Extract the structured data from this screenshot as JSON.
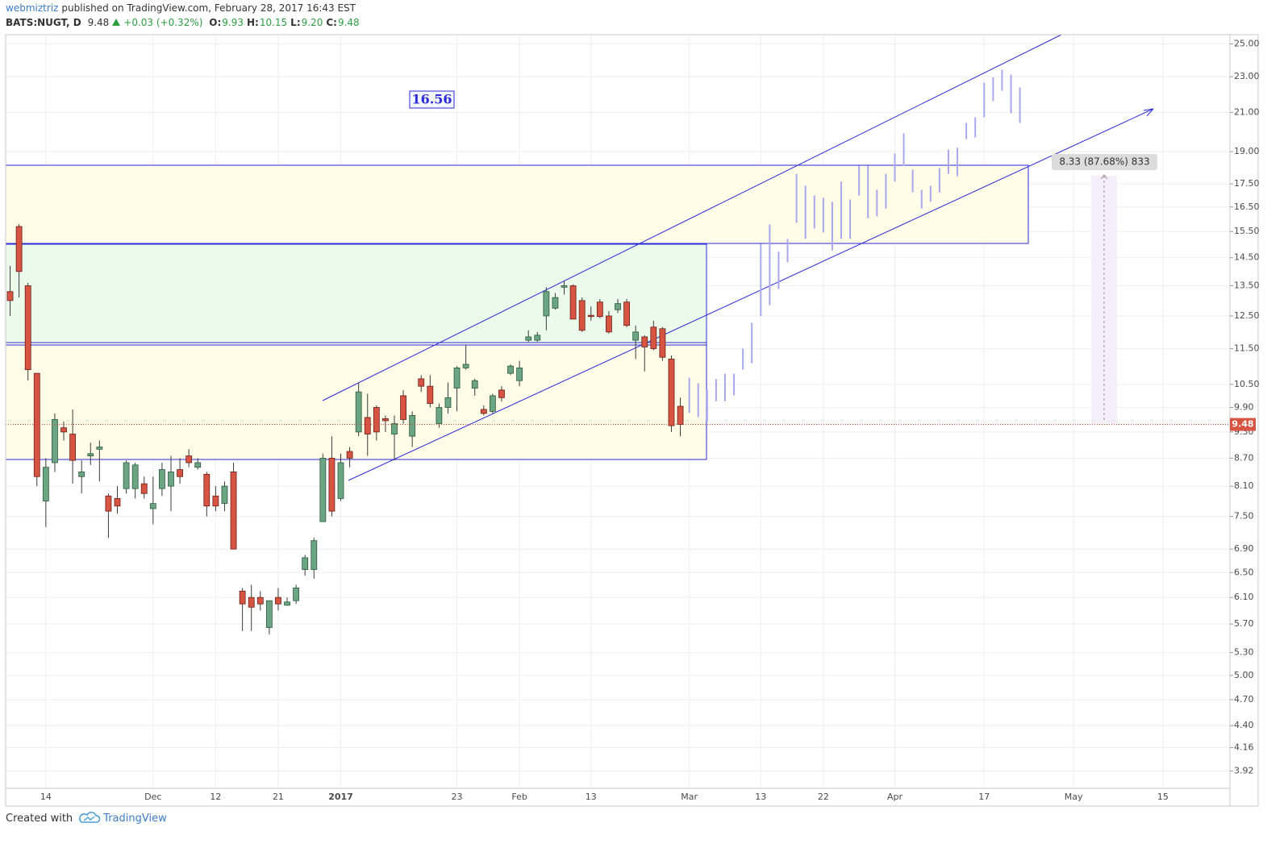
{
  "header": {
    "author": "webmiztriz",
    "published": "published on TradingView.com, February 28, 2017 16:43 EST",
    "symbol": "BATS:NUGT, D",
    "last": "9.48",
    "change": "+0.03 (+0.32%)",
    "ohlc": [
      {
        "label": "O:",
        "value": "9.93"
      },
      {
        "label": "H:",
        "value": "10.15"
      },
      {
        "label": "L:",
        "value": "9.20"
      },
      {
        "label": "C:",
        "value": "9.48"
      }
    ]
  },
  "footer": {
    "prefix": "Created with",
    "brand": "TradingView"
  },
  "chart_data": {
    "type": "candlestick",
    "log_scale": true,
    "grid": true,
    "up_color": "#6ba583",
    "down_color": "#d75442",
    "ylim": [
      3.75,
      25.6
    ],
    "yticks": [
      {
        "value": 25,
        "label": "25.00"
      },
      {
        "value": 23,
        "label": "23.00"
      },
      {
        "value": 21,
        "label": "21.00"
      },
      {
        "value": 19,
        "label": "19.00"
      },
      {
        "value": 17.5,
        "label": "17.50"
      },
      {
        "value": 16.5,
        "label": "16.50"
      },
      {
        "value": 15.5,
        "label": "15.50"
      },
      {
        "value": 14.5,
        "label": "14.50"
      },
      {
        "value": 13.5,
        "label": "13.50"
      },
      {
        "value": 12.5,
        "label": "12.50"
      },
      {
        "value": 11.5,
        "label": "11.50"
      },
      {
        "value": 10.5,
        "label": "10.50"
      },
      {
        "value": 9.9,
        "label": "9.90"
      },
      {
        "value": 9.3,
        "label": "9.30"
      },
      {
        "value": 8.7,
        "label": "8.70"
      },
      {
        "value": 8.1,
        "label": "8.10"
      },
      {
        "value": 7.5,
        "label": "7.50"
      },
      {
        "value": 6.9,
        "label": "6.90"
      },
      {
        "value": 6.5,
        "label": "6.50"
      },
      {
        "value": 6.1,
        "label": "6.10"
      },
      {
        "value": 5.7,
        "label": "5.70"
      },
      {
        "value": 5.3,
        "label": "5.30"
      },
      {
        "value": 5,
        "label": "5.00"
      },
      {
        "value": 4.7,
        "label": "4.70"
      },
      {
        "value": 4.4,
        "label": "4.40"
      },
      4.16,
      3.92
    ],
    "last_price": 9.48,
    "annotations": {
      "price_note": "16.56",
      "measure": "8.33 (87.68%) 833"
    },
    "categories": [
      null,
      null,
      null,
      null,
      "14",
      null,
      null,
      null,
      null,
      null,
      null,
      null,
      null,
      null,
      null,
      null,
      "Dec",
      null,
      null,
      null,
      null,
      null,
      null,
      "12",
      null,
      null,
      null,
      null,
      null,
      null,
      "21",
      null,
      null,
      null,
      null,
      null,
      null,
      "2017",
      null,
      null,
      null,
      null,
      null,
      null,
      null,
      null,
      null,
      null,
      null,
      null,
      "23",
      null,
      null,
      null,
      null,
      null,
      null,
      "Feb",
      null,
      null,
      null,
      null,
      null,
      null,
      null,
      "13",
      null,
      null,
      null,
      null,
      null,
      null,
      null,
      null,
      null,
      null,
      "Mar",
      null,
      null,
      null,
      null,
      null,
      null,
      null,
      "13",
      null,
      null,
      null,
      null,
      null,
      null,
      "22",
      null,
      null,
      null,
      null,
      null,
      null,
      null,
      "Apr",
      null,
      null,
      null,
      null,
      null,
      null,
      null,
      null,
      null,
      "17",
      null,
      null,
      null,
      null,
      null,
      null,
      null,
      null,
      null,
      "May",
      null,
      null,
      null,
      null,
      null,
      null,
      null,
      null,
      null,
      "15",
      null,
      null,
      null,
      null,
      null,
      null,
      null
    ],
    "open": [
      13.3,
      15.7,
      13.5,
      10.8,
      7.8,
      8.6,
      9.4,
      9.25,
      8.3,
      8.75,
      8.9,
      7.9,
      7.85,
      8.05,
      8.05,
      8.15,
      7.65,
      8.05,
      8.1,
      8.45,
      8.75,
      8.5,
      8.35,
      7.9,
      7.75,
      8.4,
      6.2,
      6.1,
      6.1,
      5.65,
      6.1,
      5.98,
      6.05,
      6.55,
      6.55,
      7.4,
      8.7,
      7.85,
      8.85,
      9.3,
      9.65,
      9.9,
      9.62,
      9.25,
      10.2,
      9.2,
      10.65,
      10.45,
      9.5,
      9.9,
      10.4,
      10.95,
      10.4,
      9.85,
      9.8,
      10.35,
      10.8,
      10.6,
      11.75,
      11.75,
      12.5,
      12.75,
      13.45,
      13.5,
      13.0,
      12.52,
      12.95,
      12.5,
      12.7,
      12.95,
      11.75,
      11.85,
      12.15,
      12.1,
      11.2,
      9.93,
      null,
      null,
      null,
      null,
      null,
      null,
      null,
      null,
      null,
      null,
      null,
      null,
      null,
      null,
      null,
      null,
      null,
      null,
      null,
      null,
      null,
      null,
      null,
      null,
      null,
      null,
      null,
      null,
      null,
      null,
      null,
      null,
      null,
      null,
      null,
      null,
      null,
      null,
      null,
      null,
      null,
      null,
      null,
      null,
      null,
      null,
      null,
      null,
      null,
      null,
      null,
      null,
      null,
      null,
      null,
      null,
      null,
      null,
      null,
      null,
      null
    ],
    "high": [
      14.2,
      15.8,
      13.6,
      10.8,
      8.7,
      9.75,
      9.55,
      9.85,
      8.65,
      9.05,
      9.1,
      7.95,
      8.1,
      8.65,
      8.6,
      8.3,
      8.3,
      8.6,
      8.75,
      8.7,
      8.9,
      8.7,
      8.4,
      8.1,
      8.2,
      8.6,
      6.25,
      6.3,
      6.2,
      6.05,
      6.25,
      6.1,
      6.3,
      6.8,
      7.1,
      8.8,
      9.2,
      8.8,
      8.95,
      10.55,
      10.25,
      9.95,
      9.7,
      9.7,
      10.35,
      9.8,
      10.75,
      10.75,
      10.0,
      10.55,
      11.0,
      11.6,
      10.65,
      9.95,
      10.25,
      10.45,
      11.05,
      11.15,
      12.05,
      12.0,
      13.45,
      13.25,
      13.65,
      13.55,
      13.1,
      12.8,
      13.05,
      12.65,
      13.05,
      13.05,
      12.2,
      11.9,
      12.35,
      12.15,
      11.3,
      10.15,
      null,
      null,
      null,
      null,
      null,
      null,
      null,
      null,
      null,
      null,
      null,
      null,
      null,
      null,
      null,
      null,
      null,
      null,
      null,
      null,
      null,
      null,
      null,
      null,
      null,
      null,
      null,
      null,
      null,
      null,
      null,
      null,
      null,
      null,
      null,
      null,
      null,
      null,
      null,
      null,
      null,
      null,
      null,
      null,
      null,
      null,
      null,
      null,
      null,
      null,
      null,
      null,
      null,
      null,
      null,
      null,
      null,
      null,
      null,
      null,
      null
    ],
    "low": [
      12.5,
      13.1,
      10.6,
      8.1,
      7.3,
      8.4,
      9.1,
      8.15,
      7.95,
      8.55,
      8.2,
      7.1,
      7.55,
      7.95,
      7.85,
      7.85,
      7.35,
      7.9,
      7.6,
      8.15,
      8.5,
      8.45,
      7.5,
      7.6,
      7.6,
      6.9,
      5.6,
      5.6,
      5.9,
      5.55,
      5.9,
      5.97,
      6.0,
      6.45,
      6.4,
      7.4,
      7.5,
      7.8,
      8.5,
      9.2,
      8.75,
      9.1,
      9.3,
      8.65,
      9.5,
      8.95,
      10.3,
      9.9,
      9.4,
      9.75,
      9.8,
      10.9,
      10.2,
      9.7,
      9.75,
      10.05,
      10.75,
      10.45,
      11.7,
      11.7,
      12.05,
      12.7,
      13.2,
      12.4,
      12.0,
      12.35,
      12.43,
      11.95,
      12.6,
      12.15,
      11.2,
      10.85,
      11.45,
      11.15,
      9.3,
      9.2,
      null,
      null,
      null,
      null,
      null,
      null,
      null,
      null,
      null,
      null,
      null,
      null,
      null,
      null,
      null,
      null,
      null,
      null,
      null,
      null,
      null,
      null,
      null,
      null,
      null,
      null,
      null,
      null,
      null,
      null,
      null,
      null,
      null,
      null,
      null,
      null,
      null,
      null,
      null,
      null,
      null,
      null,
      null,
      null,
      null,
      null,
      null,
      null,
      null,
      null,
      null,
      null,
      null,
      null,
      null,
      null,
      null,
      null,
      null,
      null,
      null
    ],
    "close": [
      13.0,
      14.0,
      10.9,
      8.3,
      8.5,
      9.6,
      9.3,
      8.65,
      8.4,
      8.8,
      8.95,
      7.6,
      7.7,
      8.6,
      8.55,
      7.95,
      7.75,
      8.45,
      8.4,
      8.3,
      8.6,
      8.6,
      7.7,
      7.7,
      8.1,
      6.9,
      6.0,
      5.95,
      6.0,
      6.05,
      6.0,
      6.03,
      6.25,
      6.75,
      7.05,
      8.7,
      7.6,
      8.6,
      8.7,
      10.3,
      9.25,
      9.3,
      9.57,
      9.5,
      9.6,
      9.7,
      10.45,
      10.0,
      9.9,
      10.15,
      10.95,
      11.05,
      10.6,
      9.75,
      10.2,
      10.15,
      11.0,
      10.95,
      11.85,
      11.9,
      13.3,
      13.1,
      13.5,
      12.4,
      12.05,
      12.48,
      12.48,
      12.0,
      12.9,
      12.2,
      12.0,
      11.55,
      11.5,
      11.25,
      9.45,
      9.48,
      null,
      null,
      null,
      null,
      null,
      null,
      null,
      null,
      null,
      null,
      null,
      null,
      null,
      null,
      null,
      null,
      null,
      null,
      null,
      null,
      null,
      null,
      null,
      null,
      null,
      null,
      null,
      null,
      null,
      null,
      null,
      null,
      null,
      null,
      null,
      null,
      null,
      null,
      null,
      null,
      null,
      null,
      null,
      null,
      null,
      null,
      null,
      null,
      null,
      null,
      null,
      null,
      null,
      null,
      null,
      null,
      null,
      null,
      null,
      null,
      null
    ],
    "projection": {
      "color": "#a9a7ee",
      "low": [
        null,
        null,
        null,
        null,
        null,
        null,
        null,
        null,
        null,
        null,
        null,
        null,
        null,
        null,
        null,
        null,
        null,
        null,
        null,
        null,
        null,
        null,
        null,
        null,
        null,
        null,
        null,
        null,
        null,
        null,
        null,
        null,
        null,
        null,
        null,
        null,
        null,
        null,
        null,
        null,
        null,
        null,
        null,
        null,
        null,
        null,
        null,
        null,
        null,
        null,
        null,
        null,
        null,
        null,
        null,
        null,
        null,
        null,
        null,
        null,
        null,
        null,
        null,
        null,
        null,
        null,
        null,
        null,
        null,
        null,
        null,
        null,
        null,
        null,
        null,
        null,
        9.76,
        9.66,
        9.56,
        10.06,
        10.06,
        10.21,
        10.9,
        11.08,
        12.5,
        12.85,
        13.39,
        14.33,
        15.85,
        15.21,
        15.62,
        15.46,
        14.77,
        15.21,
        15.21,
        16.99,
        16.04,
        16.11,
        16.44,
        17.6,
        18.33,
        17.13,
        16.44,
        16.72,
        17.13,
        17.96,
        17.85,
        19.62,
        19.7,
        20.74,
        21.61,
        22.19,
        20.95,
        20.44,
        null,
        null,
        null,
        null,
        null,
        null,
        null,
        null,
        null,
        null,
        null,
        null,
        null,
        null,
        null,
        null,
        null,
        null,
        null,
        null,
        null,
        null,
        null
      ],
      "high": [
        null,
        null,
        null,
        null,
        null,
        null,
        null,
        null,
        null,
        null,
        null,
        null,
        null,
        null,
        null,
        null,
        null,
        null,
        null,
        null,
        null,
        null,
        null,
        null,
        null,
        null,
        null,
        null,
        null,
        null,
        null,
        null,
        null,
        null,
        null,
        null,
        null,
        null,
        null,
        null,
        null,
        null,
        null,
        null,
        null,
        null,
        null,
        null,
        null,
        null,
        null,
        null,
        null,
        null,
        null,
        null,
        null,
        null,
        null,
        null,
        null,
        null,
        null,
        null,
        null,
        null,
        null,
        null,
        null,
        null,
        null,
        null,
        null,
        null,
        null,
        null,
        10.68,
        10.53,
        10.36,
        10.64,
        10.79,
        10.79,
        11.5,
        12.28,
        15.02,
        15.78,
        14.72,
        15.21,
        17.96,
        17.42,
        16.99,
        16.89,
        16.72,
        17.6,
        16.82,
        18.33,
        18.33,
        17.24,
        17.96,
        18.91,
        19.9,
        18.15,
        17.24,
        17.42,
        18.22,
        19.1,
        19.19,
        20.44,
        20.74,
        22.65,
        22.95,
        23.41,
        23.12,
        22.38,
        null,
        null,
        null,
        null,
        null,
        null,
        null,
        null,
        null,
        null,
        null,
        null,
        null,
        null,
        null,
        null,
        null,
        null,
        null,
        null,
        null,
        null,
        null
      ]
    }
  }
}
